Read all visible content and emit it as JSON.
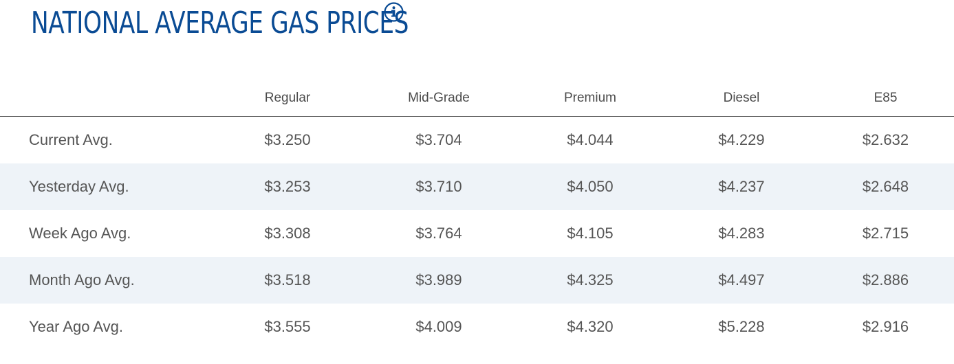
{
  "page": {
    "title": "NATIONAL AVERAGE GAS PRICES",
    "info_icon": "info-icon",
    "accent_color": "#0a4b94",
    "alt_row_color": "#eef3f8"
  },
  "table": {
    "columns": [
      "",
      "Regular",
      "Mid-Grade",
      "Premium",
      "Diesel",
      "E85"
    ],
    "rows": [
      {
        "label": "Current Avg.",
        "values": [
          "$3.250",
          "$3.704",
          "$4.044",
          "$4.229",
          "$2.632"
        ]
      },
      {
        "label": "Yesterday Avg.",
        "values": [
          "$3.253",
          "$3.710",
          "$4.050",
          "$4.237",
          "$2.648"
        ]
      },
      {
        "label": "Week Ago Avg.",
        "values": [
          "$3.308",
          "$3.764",
          "$4.105",
          "$4.283",
          "$2.715"
        ]
      },
      {
        "label": "Month Ago Avg.",
        "values": [
          "$3.518",
          "$3.989",
          "$4.325",
          "$4.497",
          "$2.886"
        ]
      },
      {
        "label": "Year Ago Avg.",
        "values": [
          "$3.555",
          "$4.009",
          "$4.320",
          "$5.228",
          "$2.916"
        ]
      }
    ]
  }
}
